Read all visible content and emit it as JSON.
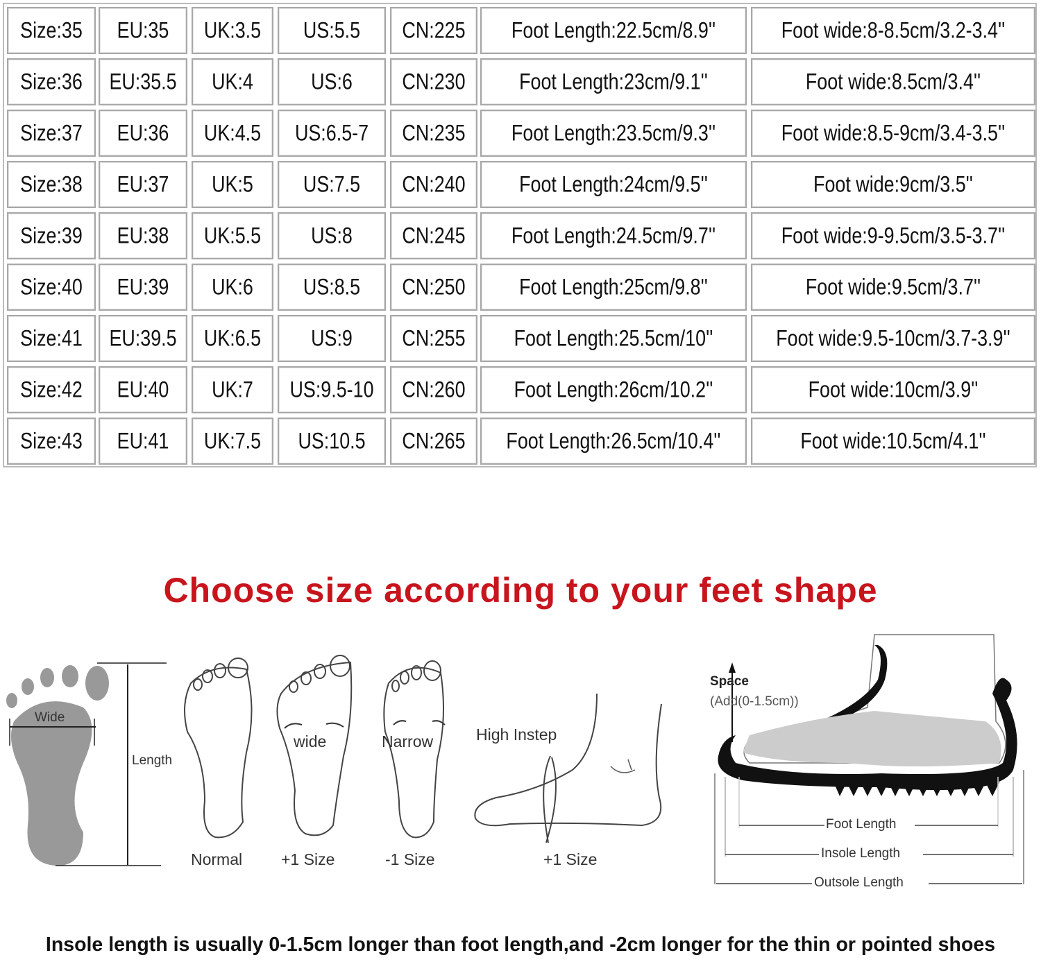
{
  "size_table": {
    "rows": [
      [
        "Size:35",
        "EU:35",
        "UK:3.5",
        "US:5.5",
        "CN:225",
        "Foot Length:22.5cm/8.9''",
        "Foot wide:8-8.5cm/3.2-3.4''"
      ],
      [
        "Size:36",
        "EU:35.5",
        "UK:4",
        "US:6",
        "CN:230",
        "Foot Length:23cm/9.1''",
        "Foot wide:8.5cm/3.4''"
      ],
      [
        "Size:37",
        "EU:36",
        "UK:4.5",
        "US:6.5-7",
        "CN:235",
        "Foot Length:23.5cm/9.3''",
        "Foot wide:8.5-9cm/3.4-3.5''"
      ],
      [
        "Size:38",
        "EU:37",
        "UK:5",
        "US:7.5",
        "CN:240",
        "Foot Length:24cm/9.5''",
        "Foot wide:9cm/3.5''"
      ],
      [
        "Size:39",
        "EU:38",
        "UK:5.5",
        "US:8",
        "CN:245",
        "Foot Length:24.5cm/9.7''",
        "Foot wide:9-9.5cm/3.5-3.7''"
      ],
      [
        "Size:40",
        "EU:39",
        "UK:6",
        "US:8.5",
        "CN:250",
        "Foot Length:25cm/9.8''",
        "Foot wide:9.5cm/3.7''"
      ],
      [
        "Size:41",
        "EU:39.5",
        "UK:6.5",
        "US:9",
        "CN:255",
        "Foot Length:25.5cm/10''",
        "Foot wide:9.5-10cm/3.7-3.9''"
      ],
      [
        "Size:42",
        "EU:40",
        "UK:7",
        "US:9.5-10",
        "CN:260",
        "Foot Length:26cm/10.2''",
        "Foot wide:10cm/3.9''"
      ],
      [
        "Size:43",
        "EU:41",
        "UK:7.5",
        "US:10.5",
        "CN:265",
        "Foot Length:26.5cm/10.4''",
        "Foot wide:10.5cm/4.1''"
      ]
    ]
  },
  "title": "Choose size according to your feet shape",
  "title_color": "#c8141c",
  "diagrams": {
    "measure": {
      "wide": "Wide",
      "length": "Length"
    },
    "normal": {
      "caption": "Normal"
    },
    "wide": {
      "label": "wide",
      "caption": "+1 Size"
    },
    "narrow": {
      "label": "Narrow",
      "caption": "-1 Size"
    },
    "high_instep": {
      "label": "High Instep",
      "caption": "+1 Size"
    },
    "shoe": {
      "space": "Space",
      "space_note": "(Add(0-1.5cm))",
      "foot_length": "Foot Length",
      "insole_length": "Insole Length",
      "outsole_length": "Outsole Length"
    }
  },
  "footnote": "Insole length is usually 0-1.5cm longer than foot length,and -2cm longer for the thin or pointed shoes"
}
